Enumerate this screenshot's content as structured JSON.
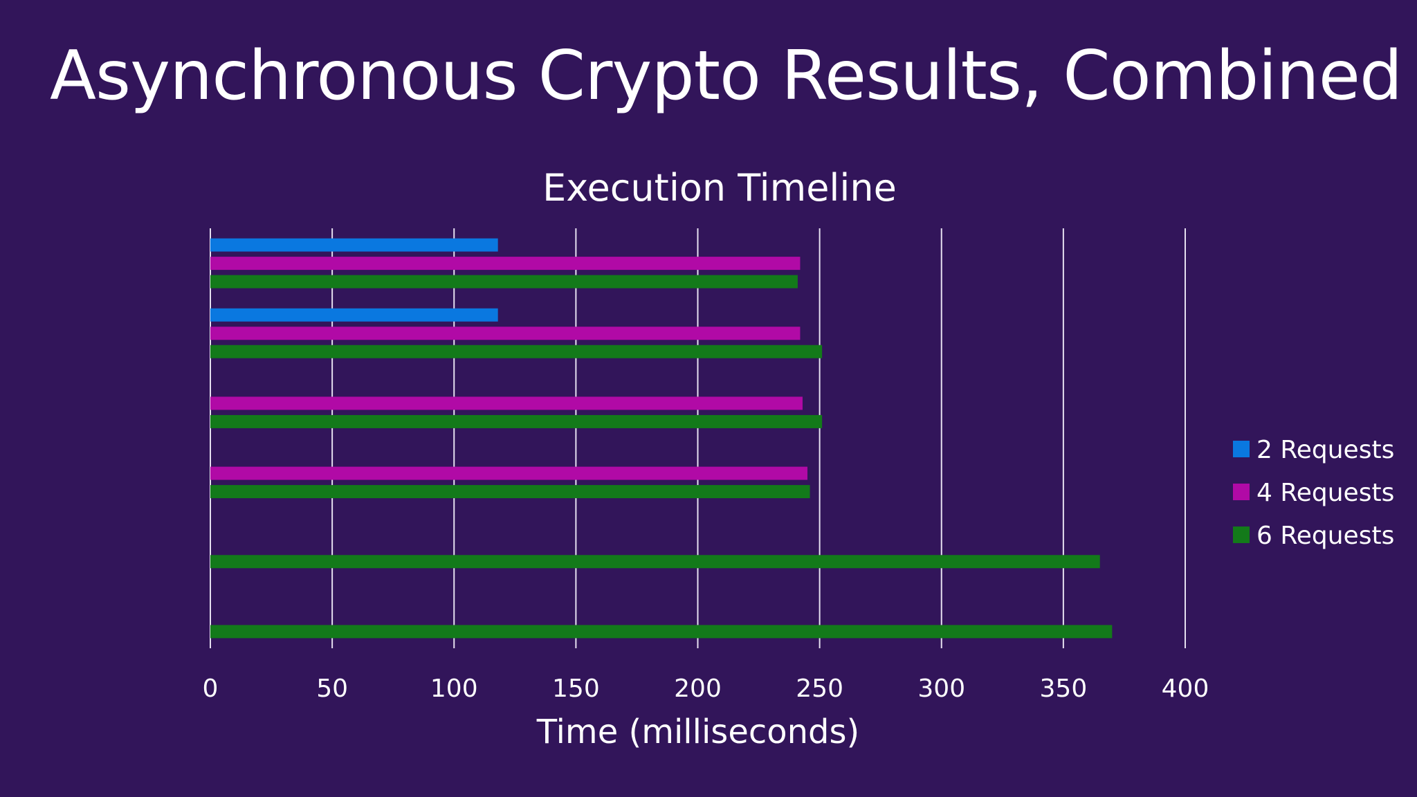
{
  "slide": {
    "title": "Asynchronous Crypto Results, Combined"
  },
  "chart_data": {
    "type": "bar",
    "orientation": "horizontal",
    "title": "Execution Timeline",
    "xlabel": "Time (milliseconds)",
    "ylabel": "",
    "xlim": [
      0,
      400
    ],
    "xticks": [
      "0",
      "50",
      "100",
      "150",
      "200",
      "250",
      "300",
      "350",
      "400"
    ],
    "grid": "vertical",
    "legend_position": "right",
    "categories": [
      "",
      "",
      "",
      "",
      "",
      ""
    ],
    "series": [
      {
        "name": "2 Requests",
        "color": "#0a78e0",
        "values": [
          118,
          118,
          null,
          null,
          null,
          null
        ]
      },
      {
        "name": "4 Requests",
        "color": "#b10aa6",
        "values": [
          242,
          242,
          243,
          245,
          null,
          null
        ]
      },
      {
        "name": "6 Requests",
        "color": "#137a1a",
        "values": [
          241,
          251,
          251,
          246,
          365,
          370
        ]
      }
    ]
  }
}
